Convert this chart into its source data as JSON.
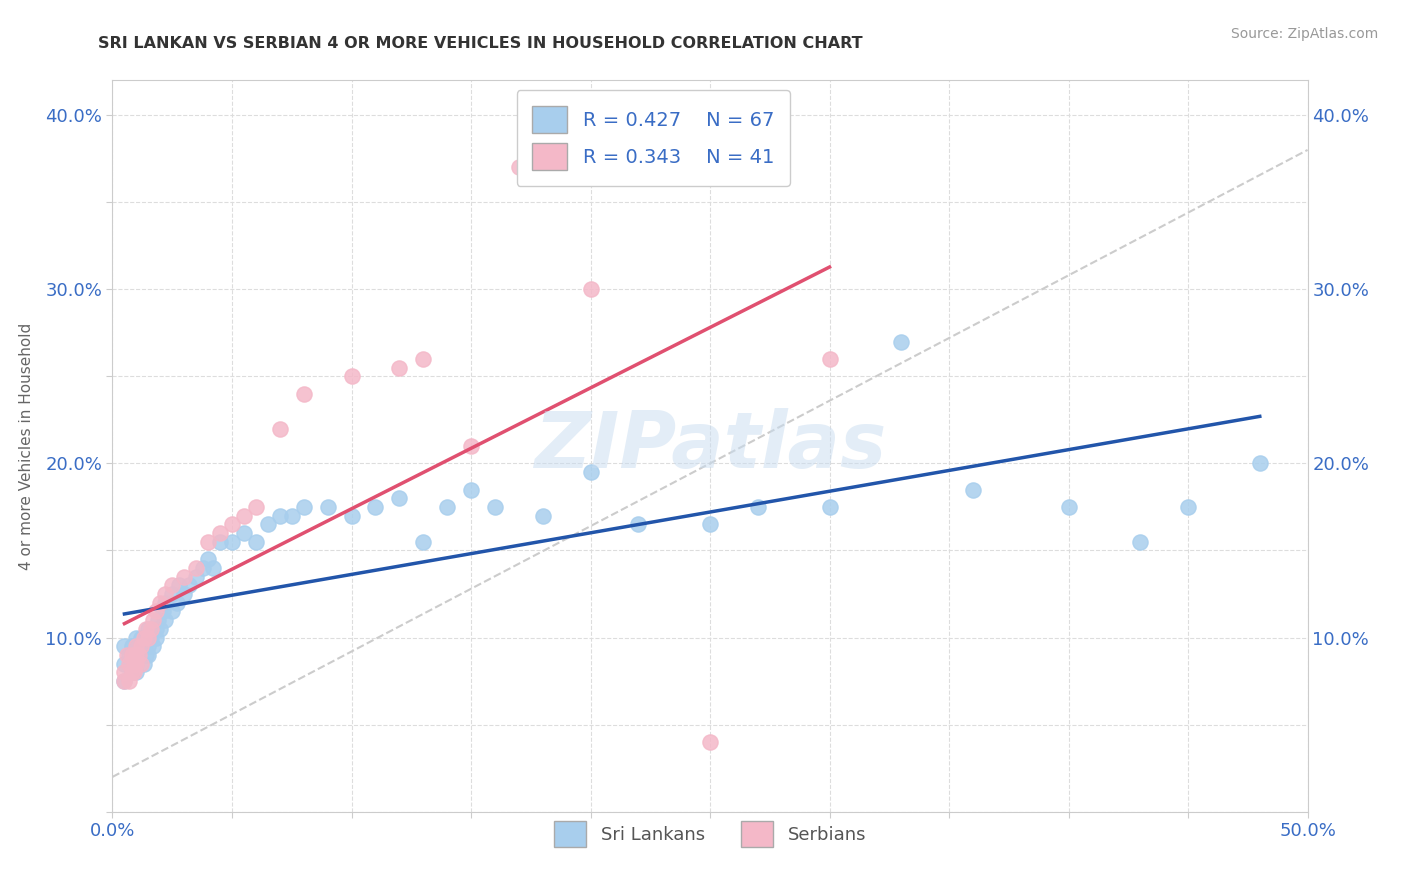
{
  "title": "SRI LANKAN VS SERBIAN 4 OR MORE VEHICLES IN HOUSEHOLD CORRELATION CHART",
  "source": "Source: ZipAtlas.com",
  "ylabel_label": "4 or more Vehicles in Household",
  "xmin": 0.0,
  "xmax": 0.5,
  "ymin": 0.0,
  "ymax": 0.42,
  "sri_lankans_x": [
    0.005,
    0.005,
    0.005,
    0.007,
    0.008,
    0.008,
    0.009,
    0.01,
    0.01,
    0.01,
    0.01,
    0.012,
    0.012,
    0.013,
    0.013,
    0.014,
    0.014,
    0.015,
    0.015,
    0.015,
    0.016,
    0.017,
    0.018,
    0.018,
    0.019,
    0.02,
    0.021,
    0.022,
    0.022,
    0.025,
    0.025,
    0.027,
    0.028,
    0.03,
    0.032,
    0.035,
    0.038,
    0.04,
    0.042,
    0.045,
    0.05,
    0.055,
    0.06,
    0.065,
    0.07,
    0.075,
    0.08,
    0.09,
    0.1,
    0.11,
    0.12,
    0.13,
    0.14,
    0.15,
    0.16,
    0.18,
    0.2,
    0.22,
    0.25,
    0.27,
    0.3,
    0.33,
    0.36,
    0.4,
    0.43,
    0.45,
    0.48
  ],
  "sri_lankans_y": [
    0.085,
    0.095,
    0.075,
    0.09,
    0.08,
    0.095,
    0.085,
    0.09,
    0.1,
    0.08,
    0.085,
    0.095,
    0.1,
    0.085,
    0.095,
    0.09,
    0.1,
    0.095,
    0.105,
    0.09,
    0.1,
    0.095,
    0.105,
    0.1,
    0.11,
    0.105,
    0.115,
    0.11,
    0.12,
    0.115,
    0.125,
    0.12,
    0.13,
    0.125,
    0.13,
    0.135,
    0.14,
    0.145,
    0.14,
    0.155,
    0.155,
    0.16,
    0.155,
    0.165,
    0.17,
    0.17,
    0.175,
    0.175,
    0.17,
    0.175,
    0.18,
    0.155,
    0.175,
    0.185,
    0.175,
    0.17,
    0.195,
    0.165,
    0.165,
    0.175,
    0.175,
    0.27,
    0.185,
    0.175,
    0.155,
    0.175,
    0.2
  ],
  "serbians_x": [
    0.005,
    0.005,
    0.006,
    0.007,
    0.007,
    0.008,
    0.008,
    0.009,
    0.009,
    0.01,
    0.01,
    0.01,
    0.011,
    0.012,
    0.012,
    0.013,
    0.014,
    0.015,
    0.016,
    0.017,
    0.018,
    0.02,
    0.022,
    0.025,
    0.03,
    0.035,
    0.04,
    0.045,
    0.05,
    0.055,
    0.06,
    0.07,
    0.08,
    0.1,
    0.12,
    0.13,
    0.15,
    0.17,
    0.2,
    0.25,
    0.3
  ],
  "serbians_y": [
    0.08,
    0.075,
    0.09,
    0.085,
    0.075,
    0.09,
    0.08,
    0.085,
    0.08,
    0.09,
    0.085,
    0.095,
    0.09,
    0.095,
    0.085,
    0.1,
    0.105,
    0.1,
    0.105,
    0.11,
    0.115,
    0.12,
    0.125,
    0.13,
    0.135,
    0.14,
    0.155,
    0.16,
    0.165,
    0.17,
    0.175,
    0.22,
    0.24,
    0.25,
    0.255,
    0.26,
    0.21,
    0.37,
    0.3,
    0.04,
    0.26
  ],
  "sri_color": "#A8CEED",
  "serb_color": "#F4B8C8",
  "sri_line_color": "#2255AA",
  "serb_line_color": "#E05070",
  "trend_line_color": "#CCCCCC",
  "sri_R": 0.427,
  "sri_N": 67,
  "serb_R": 0.343,
  "serb_N": 41,
  "legend_text_color": "#3A6DC5",
  "watermark": "ZIPatlas",
  "background_color": "#FFFFFF",
  "grid_color": "#DDDDDD"
}
